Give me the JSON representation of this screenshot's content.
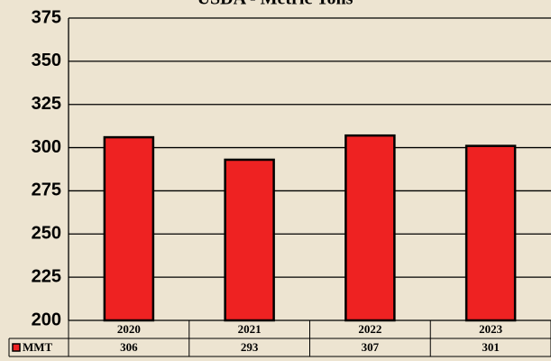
{
  "chart_data": {
    "type": "bar",
    "title": "USDA - Metric Tons",
    "categories": [
      "2020",
      "2021",
      "2022",
      "2023"
    ],
    "series": [
      {
        "name": "MMT",
        "color": "#ee2222",
        "values": [
          306,
          293,
          307,
          301
        ]
      }
    ],
    "ylim": [
      200,
      375
    ],
    "yticks": [
      200,
      225,
      250,
      275,
      300,
      325,
      350,
      375
    ],
    "grid": true
  }
}
